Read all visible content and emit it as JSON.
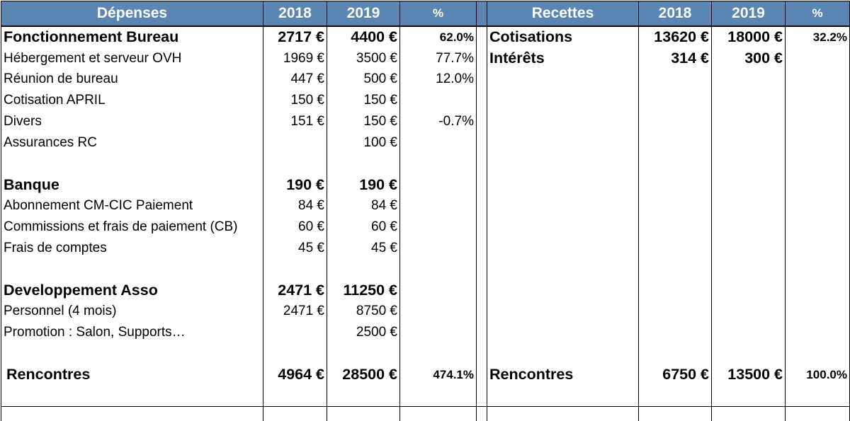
{
  "header": {
    "depenses": "Dépenses",
    "year1": "2018",
    "year2": "2019",
    "pct": "%",
    "gap": "",
    "recettes": "Recettes",
    "r_year1": "2018",
    "r_year2": "2019",
    "r_pct": "%"
  },
  "rows": [
    {
      "label": "Fonctionnement Bureau",
      "y2018": "2717 €",
      "y2019": "4400 €",
      "pct": "62.0%",
      "r_label": "Cotisations",
      "r_2018": "13620 €",
      "r_2019": "18000 €",
      "r_pct": "32.2%"
    },
    {
      "label": "Hébergement et serveur OVH",
      "y2018": "1969 €",
      "y2019": "3500 €",
      "pct": "77.7%",
      "r_label": "Intérêts",
      "r_2018": "314 €",
      "r_2019": "300 €",
      "r_pct": ""
    },
    {
      "label": "Réunion de bureau",
      "y2018": "447 €",
      "y2019": "500 €",
      "pct": "12.0%",
      "r_label": "",
      "r_2018": "",
      "r_2019": "",
      "r_pct": ""
    },
    {
      "label": "Cotisation APRIL",
      "y2018": "150 €",
      "y2019": "150 €",
      "pct": "",
      "r_label": "",
      "r_2018": "",
      "r_2019": "",
      "r_pct": ""
    },
    {
      "label": "Divers",
      "y2018": "151 €",
      "y2019": "150 €",
      "pct": "-0.7%",
      "r_label": "",
      "r_2018": "",
      "r_2019": "",
      "r_pct": ""
    },
    {
      "label": "Assurances RC",
      "y2018": "",
      "y2019": "100 €",
      "pct": "",
      "r_label": "",
      "r_2018": "",
      "r_2019": "",
      "r_pct": ""
    },
    {
      "label": "",
      "y2018": "",
      "y2019": "",
      "pct": "",
      "r_label": "",
      "r_2018": "",
      "r_2019": "",
      "r_pct": ""
    },
    {
      "label": "Banque",
      "y2018": "190 €",
      "y2019": "190 €",
      "pct": "",
      "r_label": "",
      "r_2018": "",
      "r_2019": "",
      "r_pct": ""
    },
    {
      "label": "Abonnement CM-CIC Paiement",
      "y2018": "84 €",
      "y2019": "84 €",
      "pct": "",
      "r_label": "",
      "r_2018": "",
      "r_2019": "",
      "r_pct": ""
    },
    {
      "label": "Commissions et frais de paiement (CB)",
      "y2018": "60 €",
      "y2019": "60 €",
      "pct": "",
      "r_label": "",
      "r_2018": "",
      "r_2019": "",
      "r_pct": ""
    },
    {
      "label": "Frais de comptes",
      "y2018": "45 €",
      "y2019": "45 €",
      "pct": "",
      "r_label": "",
      "r_2018": "",
      "r_2019": "",
      "r_pct": ""
    },
    {
      "label": "",
      "y2018": "",
      "y2019": "",
      "pct": "",
      "r_label": "",
      "r_2018": "",
      "r_2019": "",
      "r_pct": ""
    },
    {
      "label": "Developpement Asso",
      "y2018": "2471 €",
      "y2019": "11250 €",
      "pct": "",
      "r_label": "",
      "r_2018": "",
      "r_2019": "",
      "r_pct": ""
    },
    {
      "label": "Personnel (4 mois)",
      "y2018": "2471 €",
      "y2019": "8750 €",
      "pct": "",
      "r_label": "",
      "r_2018": "",
      "r_2019": "",
      "r_pct": ""
    },
    {
      "label": "Promotion : Salon, Supports…",
      "y2018": "",
      "y2019": "2500 €",
      "pct": "",
      "r_label": "",
      "r_2018": "",
      "r_2019": "",
      "r_pct": ""
    },
    {
      "label": "",
      "y2018": "",
      "y2019": "",
      "pct": "",
      "r_label": "",
      "r_2018": "",
      "r_2019": "",
      "r_pct": ""
    },
    {
      "label": "Rencontres",
      "y2018": "4964 €",
      "y2019": "28500 €",
      "pct": "474.1%",
      "r_label": "Rencontres",
      "r_2018": "6750 €",
      "r_2019": "13500 €",
      "r_pct": "100.0%"
    },
    {
      "label": "",
      "y2018": "",
      "y2019": "",
      "pct": "",
      "r_label": "",
      "r_2018": "",
      "r_2019": "",
      "r_pct": ""
    },
    {
      "label": "",
      "y2018": "",
      "y2019": "",
      "pct": "",
      "r_label": "",
      "r_2018": "",
      "r_2019": "",
      "r_pct": ""
    }
  ]
}
